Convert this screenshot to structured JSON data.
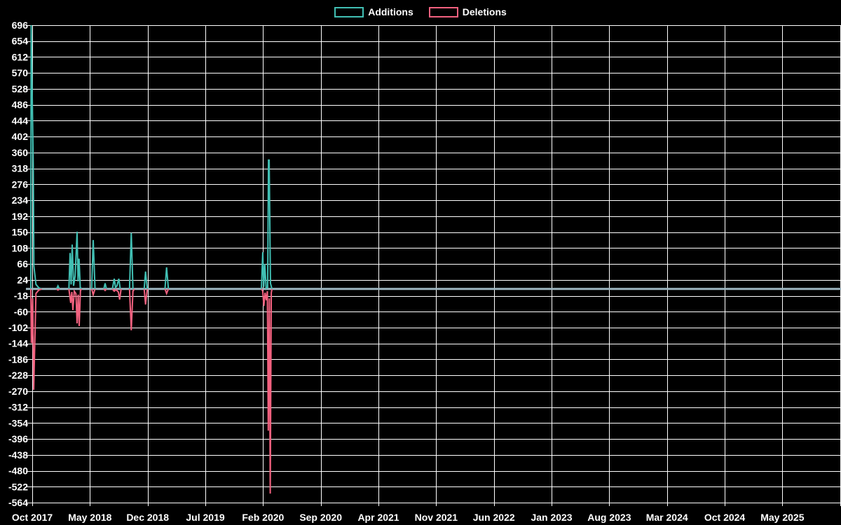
{
  "legend": {
    "additions_label": "Additions",
    "deletions_label": "Deletions"
  },
  "colors": {
    "background": "#000000",
    "grid": "#ffffff",
    "text": "#ffffff",
    "zero_line": "#9db5c0",
    "additions": "#41bfb3",
    "deletions": "#f2617f"
  },
  "chart_data": {
    "type": "line",
    "legend_position": "top-center",
    "grid": true,
    "x_unit": "months_after_first_tick",
    "x_axis": {
      "tick_labels": [
        "Oct 2017",
        "May 2018",
        "Dec 2018",
        "Jul 2019",
        "Feb 2020",
        "Sep 2020",
        "Apr 2021",
        "Nov 2021",
        "Jun 2022",
        "Jan 2023",
        "Aug 2023",
        "Mar 2024",
        "Oct 2024",
        "May 2025"
      ],
      "months_between_ticks": 7,
      "extra_right_gridline": true
    },
    "y_axis": {
      "min": -564,
      "max": 696,
      "step": 42,
      "tick_labels": [
        696,
        654,
        612,
        570,
        528,
        486,
        444,
        402,
        360,
        318,
        276,
        234,
        192,
        150,
        108,
        66,
        24,
        -18,
        -60,
        -102,
        -144,
        -186,
        -228,
        -270,
        -312,
        -354,
        -396,
        -438,
        -480,
        -522,
        -564
      ]
    },
    "zero_baseline": true,
    "series": [
      {
        "name": "Additions",
        "color": "#41bfb3",
        "segments": [
          [
            [
              -0.17,
              0
            ],
            [
              -0.13,
              696
            ],
            [
              0.12,
              330
            ],
            [
              0.2,
              60
            ],
            [
              0.45,
              12
            ],
            [
              0.8,
              3
            ],
            [
              1.15,
              0
            ]
          ],
          [
            [
              2.95,
              0
            ],
            [
              3.12,
              8
            ],
            [
              3.3,
              0
            ]
          ],
          [
            [
              4.45,
              0
            ],
            [
              4.59,
              95
            ],
            [
              4.72,
              12
            ],
            [
              4.85,
              117
            ],
            [
              5.02,
              8
            ],
            [
              5.2,
              35
            ],
            [
              5.44,
              151
            ],
            [
              5.56,
              20
            ],
            [
              5.68,
              80
            ],
            [
              5.82,
              4
            ],
            [
              6.0,
              0
            ]
          ],
          [
            [
              7.2,
              0
            ],
            [
              7.4,
              129
            ],
            [
              7.62,
              0
            ]
          ],
          [
            [
              8.68,
              0
            ],
            [
              8.84,
              15
            ],
            [
              9.0,
              0
            ]
          ],
          [
            [
              9.72,
              0
            ],
            [
              9.95,
              27
            ],
            [
              10.1,
              4
            ],
            [
              10.28,
              8
            ],
            [
              10.5,
              27
            ],
            [
              10.68,
              0
            ]
          ],
          [
            [
              11.8,
              0
            ],
            [
              12.01,
              148
            ],
            [
              12.22,
              0
            ]
          ],
          [
            [
              13.58,
              0
            ],
            [
              13.75,
              46
            ],
            [
              13.95,
              0
            ]
          ],
          [
            [
              16.1,
              0
            ],
            [
              16.3,
              57
            ],
            [
              16.52,
              0
            ]
          ],
          [
            [
              27.8,
              0
            ],
            [
              27.96,
              97
            ],
            [
              28.08,
              5
            ],
            [
              28.21,
              66
            ],
            [
              28.38,
              2
            ],
            [
              28.56,
              4
            ],
            [
              28.66,
              340
            ],
            [
              28.74,
              340
            ],
            [
              28.9,
              15
            ],
            [
              29.08,
              0
            ]
          ]
        ]
      },
      {
        "name": "Deletions",
        "color": "#f2617f",
        "segments": [
          [
            [
              -0.17,
              0
            ],
            [
              -0.1,
              -143
            ],
            [
              0.05,
              -25
            ],
            [
              0.18,
              -266
            ],
            [
              0.45,
              -12
            ],
            [
              0.8,
              -3
            ],
            [
              1.15,
              0
            ]
          ],
          [
            [
              2.95,
              0
            ],
            [
              3.12,
              -3
            ],
            [
              3.3,
              0
            ]
          ],
          [
            [
              4.45,
              0
            ],
            [
              4.67,
              -37
            ],
            [
              4.8,
              -8
            ],
            [
              4.93,
              -56
            ],
            [
              5.1,
              -6
            ],
            [
              5.3,
              -12
            ],
            [
              5.44,
              -91
            ],
            [
              5.58,
              -15
            ],
            [
              5.7,
              -98
            ],
            [
              5.85,
              -4
            ],
            [
              6.0,
              0
            ]
          ],
          [
            [
              7.2,
              0
            ],
            [
              7.4,
              -15
            ],
            [
              7.62,
              0
            ]
          ],
          [
            [
              8.68,
              0
            ],
            [
              8.84,
              -4
            ],
            [
              9.0,
              0
            ]
          ],
          [
            [
              9.72,
              0
            ],
            [
              9.95,
              -6
            ],
            [
              10.15,
              -2
            ],
            [
              10.45,
              -8
            ],
            [
              10.6,
              -28
            ],
            [
              10.78,
              0
            ]
          ],
          [
            [
              11.8,
              0
            ],
            [
              12.01,
              -109
            ],
            [
              12.22,
              -6
            ],
            [
              12.4,
              0
            ]
          ],
          [
            [
              13.58,
              0
            ],
            [
              13.75,
              -41
            ],
            [
              13.95,
              0
            ]
          ],
          [
            [
              16.1,
              0
            ],
            [
              16.3,
              -12
            ],
            [
              16.52,
              0
            ]
          ],
          [
            [
              27.8,
              0
            ],
            [
              27.96,
              -6
            ],
            [
              28.1,
              -45
            ],
            [
              28.24,
              -10
            ],
            [
              28.4,
              -30
            ],
            [
              28.52,
              -6
            ],
            [
              28.63,
              -374
            ],
            [
              28.76,
              -25
            ],
            [
              28.87,
              -540
            ],
            [
              29.0,
              -10
            ],
            [
              29.08,
              0
            ]
          ]
        ]
      }
    ]
  }
}
